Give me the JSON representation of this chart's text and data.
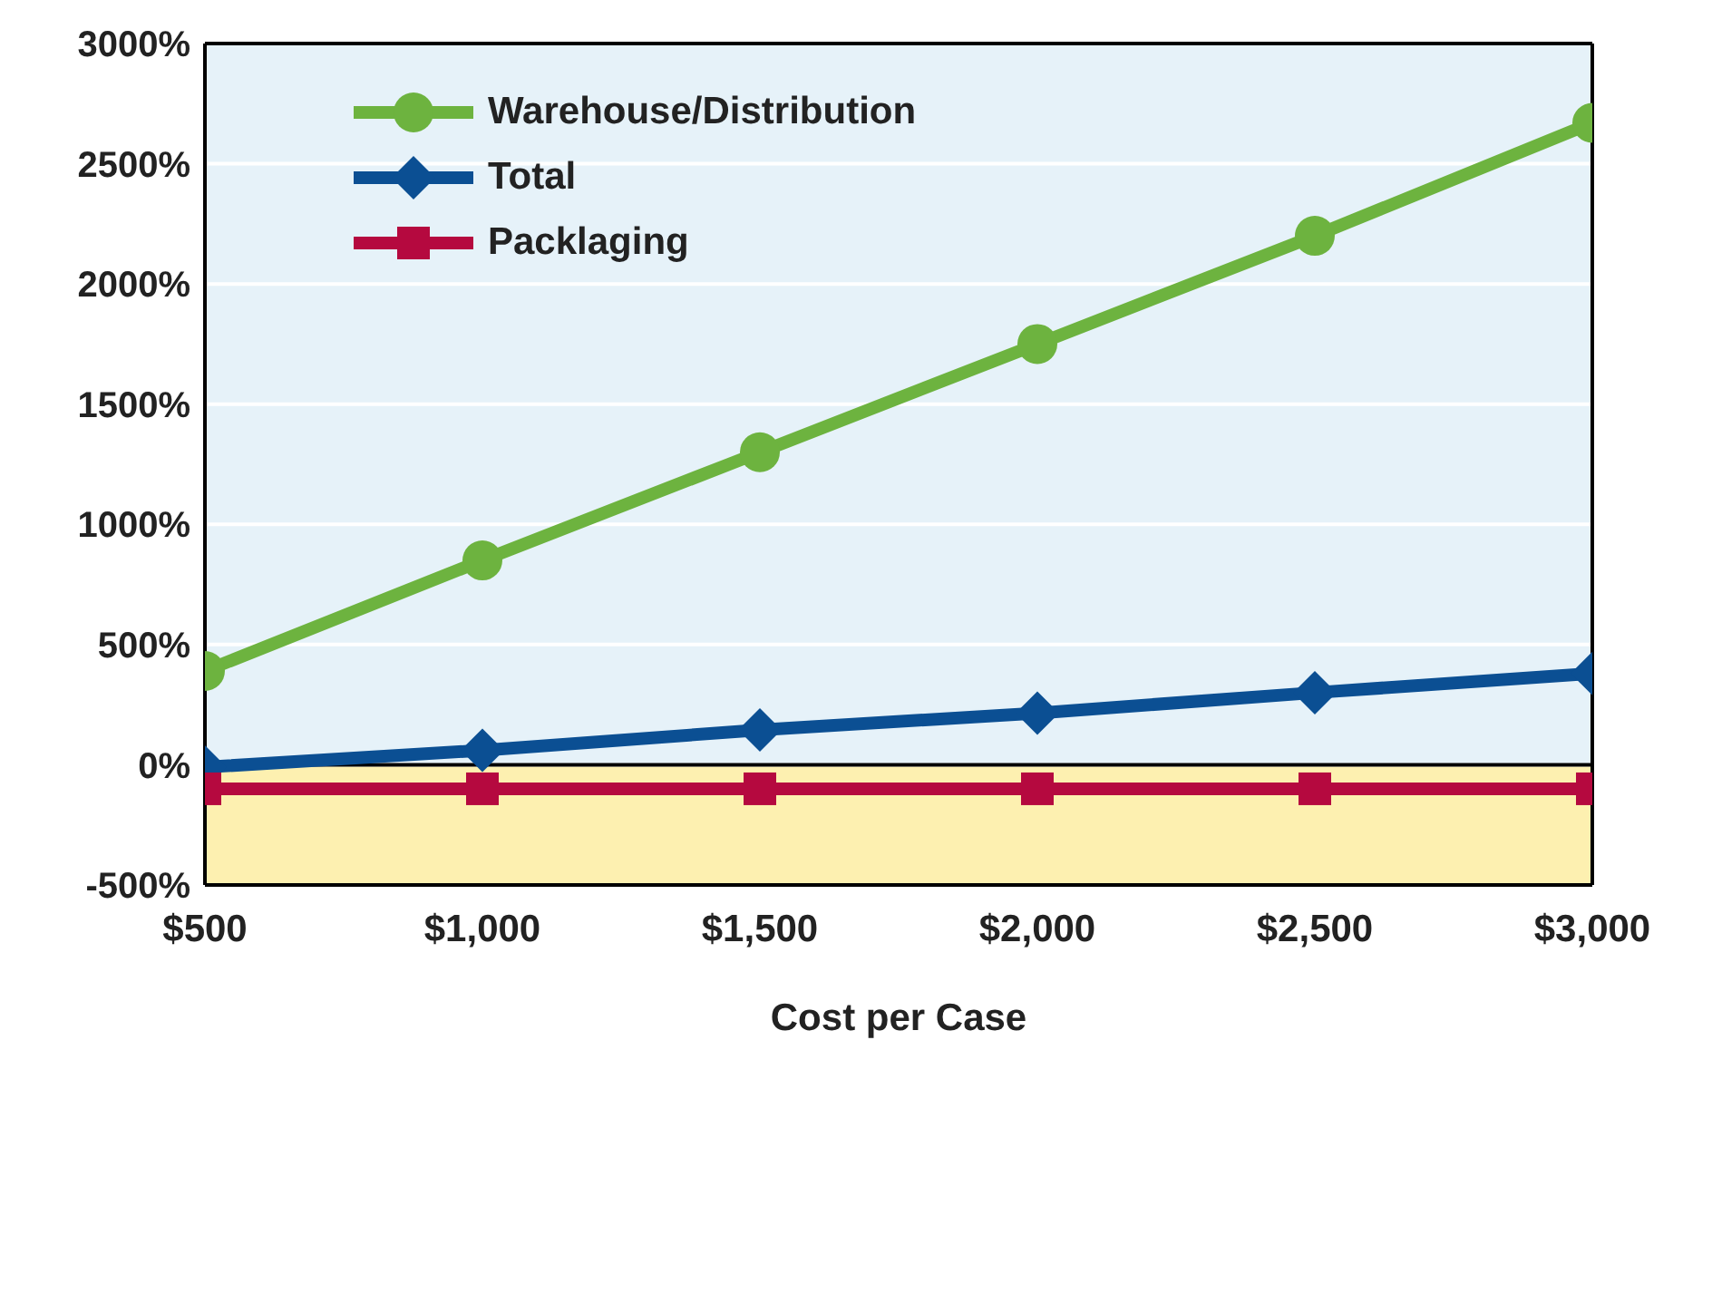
{
  "chart_data": {
    "type": "line",
    "xlabel": "Cost per Case",
    "x": [
      500,
      1000,
      1500,
      2000,
      2500,
      3000
    ],
    "xlim": [
      500,
      3000
    ],
    "xticks": [
      {
        "value": 500,
        "label": "$500"
      },
      {
        "value": 1000,
        "label": "$1,000"
      },
      {
        "value": 1500,
        "label": "$1,500"
      },
      {
        "value": 2000,
        "label": "$2,000"
      },
      {
        "value": 2500,
        "label": "$2,500"
      },
      {
        "value": 3000,
        "label": "$3,000"
      }
    ],
    "ylim": [
      -500,
      3000
    ],
    "yticks": [
      {
        "value": -500,
        "label": "-500%"
      },
      {
        "value": 0,
        "label": "0%"
      },
      {
        "value": 500,
        "label": "500%"
      },
      {
        "value": 1000,
        "label": "1000%"
      },
      {
        "value": 1500,
        "label": "1500%"
      },
      {
        "value": 2000,
        "label": "2000%"
      },
      {
        "value": 2500,
        "label": "2500%"
      },
      {
        "value": 3000,
        "label": "3000%"
      }
    ],
    "grid": "y",
    "legend": "top left",
    "line_style": "solid",
    "bands": [
      {
        "axis": "y",
        "from": -500,
        "to": 0,
        "color": "#fdf0b0"
      },
      {
        "axis": "y",
        "from": 0,
        "to": 3000,
        "color": "#e6f2f9"
      }
    ],
    "ref_lines": [
      {
        "axis": "y",
        "value": 0,
        "color": "#000000"
      }
    ],
    "series": [
      {
        "name": "Warehouse/Distribution",
        "color": "#6db33f",
        "marker": "circle",
        "values": [
          390,
          850,
          1300,
          1750,
          2200,
          2670
        ]
      },
      {
        "name": "Total",
        "color": "#0b4f93",
        "marker": "diamond",
        "values": [
          -10,
          60,
          145,
          215,
          300,
          380
        ]
      },
      {
        "name": "Packlaging",
        "color": "#b5093f",
        "marker": "square",
        "values": [
          -100,
          -100,
          -100,
          -100,
          -100,
          -100
        ]
      }
    ]
  }
}
